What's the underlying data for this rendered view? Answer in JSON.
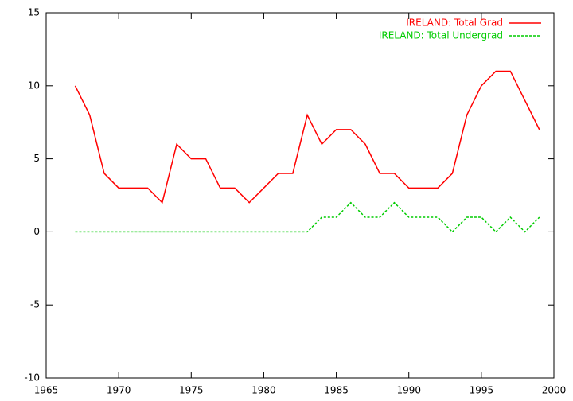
{
  "chart_data": {
    "type": "line",
    "x": [
      1967,
      1968,
      1969,
      1970,
      1971,
      1972,
      1973,
      1974,
      1975,
      1976,
      1977,
      1978,
      1979,
      1980,
      1981,
      1982,
      1983,
      1984,
      1985,
      1986,
      1987,
      1988,
      1989,
      1990,
      1991,
      1992,
      1993,
      1994,
      1995,
      1996,
      1997,
      1998,
      1999
    ],
    "series": [
      {
        "name": "IRELAND: Total Grad",
        "color": "#ff0000",
        "dash": "solid",
        "values": [
          10,
          8,
          4,
          3,
          3,
          3,
          2,
          6,
          5,
          5,
          3,
          3,
          2,
          3,
          4,
          4,
          8,
          6,
          7,
          7,
          6,
          4,
          4,
          3,
          3,
          3,
          4,
          8,
          10,
          11,
          11,
          9,
          7
        ]
      },
      {
        "name": "IRELAND: Total Undergrad",
        "color": "#00cc00",
        "dash": "dashed",
        "values": [
          0,
          0,
          0,
          0,
          0,
          0,
          0,
          0,
          0,
          0,
          0,
          0,
          0,
          0,
          0,
          0,
          0,
          1,
          1,
          2,
          1,
          1,
          2,
          1,
          1,
          1,
          0,
          1,
          1,
          0,
          1,
          0,
          1
        ]
      }
    ],
    "xlim": [
      1965,
      2000
    ],
    "xticks": [
      1965,
      1970,
      1975,
      1980,
      1985,
      1990,
      1995,
      2000
    ],
    "ylim": [
      -10,
      15
    ],
    "yticks": [
      -10,
      -5,
      0,
      5,
      10,
      15
    ],
    "grid": false,
    "legend": "top-right"
  }
}
